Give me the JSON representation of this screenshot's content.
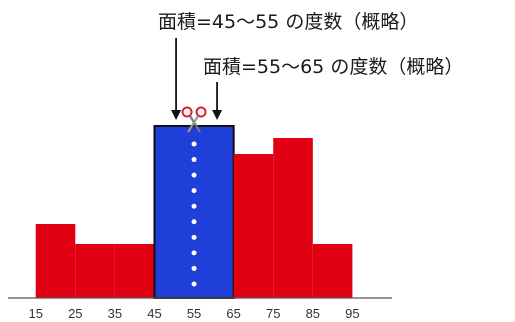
{
  "chart_data": {
    "type": "bar",
    "title": "",
    "xlabel": "",
    "ylabel": "",
    "x_ticks": [
      "15",
      "25",
      "35",
      "45",
      "55",
      "65",
      "75",
      "85",
      "95"
    ],
    "bins": [
      {
        "from": 15,
        "to": 25,
        "value": 3.7,
        "highlighted": false
      },
      {
        "from": 25,
        "to": 35,
        "value": 2.7,
        "highlighted": false
      },
      {
        "from": 35,
        "to": 45,
        "value": 2.7,
        "highlighted": false
      },
      {
        "from": 45,
        "to": 65,
        "value": 8.6,
        "highlighted": true
      },
      {
        "from": 65,
        "to": 75,
        "value": 7.2,
        "highlighted": false
      },
      {
        "from": 75,
        "to": 85,
        "value": 8.0,
        "highlighted": false
      },
      {
        "from": 85,
        "to": 95,
        "value": 2.7,
        "highlighted": false
      }
    ],
    "xlim": [
      8,
      105
    ],
    "ylim": [
      0,
      11
    ],
    "cut_line_x": 55,
    "annotations": {
      "label_left": "面積=45～55 の度数（概略）",
      "label_right": "面積=55～65 の度数（概略）"
    },
    "colors": {
      "bar": "#e00012",
      "highlight": "#1f3fd8",
      "highlight_border": "#111111",
      "cut_line": "#ffffff",
      "scissors": "#e0202a",
      "arrow": "#111111"
    },
    "icons": {
      "cut_marker": "scissors-icon"
    }
  }
}
